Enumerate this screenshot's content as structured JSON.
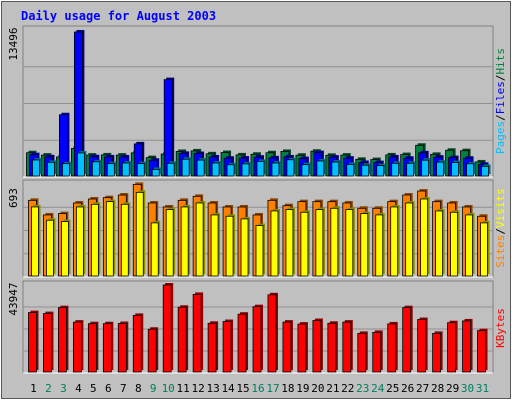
{
  "title": "Daily usage for August 2003",
  "colors": {
    "background": "#c0c0c0",
    "title": "#0000ff",
    "hits": "#008040",
    "files": "#0000ff",
    "pages": "#00c0ff",
    "visits": "#ffff00",
    "sites": "#ff8000",
    "kbytes": "#ff0000",
    "weekend_label": "#00805c"
  },
  "legends": {
    "top": [
      "Pages",
      "/",
      "Files",
      "/",
      "Hits"
    ],
    "middle": [
      "Sites",
      "/",
      "Visits"
    ],
    "bottom": [
      "KBytes"
    ]
  },
  "y_max_labels": {
    "top": "13496",
    "middle": "693",
    "bottom": "43947"
  },
  "chart_data": {
    "type": "bar",
    "title": "Daily usage for August 2003",
    "days": [
      "1",
      "2",
      "3",
      "4",
      "5",
      "6",
      "7",
      "8",
      "9",
      "10",
      "11",
      "12",
      "13",
      "14",
      "15",
      "16",
      "17",
      "18",
      "19",
      "20",
      "21",
      "22",
      "23",
      "24",
      "25",
      "26",
      "27",
      "28",
      "29",
      "30",
      "31"
    ],
    "weekend_days": [
      "2",
      "3",
      "9",
      "10",
      "16",
      "17",
      "23",
      "24",
      "30",
      "31"
    ],
    "panels": [
      {
        "name": "top",
        "ymax": 13496,
        "series": [
          {
            "name": "Hits",
            "values": [
              2150,
              1930,
              1760,
              2540,
              1930,
              1950,
              1930,
              2140,
              1700,
              2030,
              2270,
              2320,
              2050,
              2170,
              1950,
              2010,
              2150,
              2270,
              1920,
              2290,
              1910,
              1930,
              1540,
              1520,
              1950,
              1980,
              2840,
              2000,
              2380,
              2340,
              1300
            ]
          },
          {
            "name": "Files",
            "values": [
              1970,
              1770,
              5660,
              13310,
              1780,
              1760,
              1760,
              2970,
              1460,
              8910,
              2090,
              2080,
              1760,
              1640,
              1660,
              1740,
              1680,
              1760,
              1610,
              2160,
              1750,
              1650,
              1250,
              1240,
              1760,
              1640,
              2140,
              1740,
              1700,
              1640,
              1080
            ]
          },
          {
            "name": "Pages",
            "values": [
              1480,
              1260,
              1140,
              2130,
              1310,
              1140,
              1200,
              1140,
              610,
              1170,
              1550,
              1470,
              1200,
              1040,
              1120,
              1350,
              1200,
              1500,
              1050,
              1390,
              1290,
              1070,
              990,
              960,
              1170,
              1170,
              1460,
              1280,
              1240,
              1130,
              890
            ]
          }
        ]
      },
      {
        "name": "middle",
        "ymax": 693,
        "series": [
          {
            "name": "Sites",
            "values": [
              570,
              460,
              470,
              550,
              580,
              590,
              610,
              690,
              550,
              520,
              570,
              600,
              550,
              520,
              520,
              460,
              570,
              530,
              560,
              560,
              560,
              550,
              510,
              510,
              560,
              610,
              640,
              560,
              550,
              520,
              450
            ]
          },
          {
            "name": "Visits",
            "values": [
              520,
              420,
              410,
              520,
              540,
              560,
              540,
              630,
              400,
              500,
              520,
              550,
              460,
              450,
              430,
              380,
              490,
              500,
              480,
              500,
              510,
              500,
              470,
              460,
              520,
              550,
              580,
              490,
              480,
              460,
              400
            ]
          }
        ]
      },
      {
        "name": "bottom",
        "ymax": 43947,
        "series": [
          {
            "name": "KBytes",
            "values": [
              30000,
              29500,
              32500,
              25200,
              24400,
              24400,
              24500,
              28600,
              21600,
              43947,
              32700,
              39200,
              24600,
              25500,
              29200,
              33000,
              39000,
              25200,
              24200,
              26000,
              24600,
              25200,
              19500,
              20000,
              24300,
              32500,
              26500,
              19500,
              24900,
              25800,
              20900
            ]
          }
        ]
      }
    ]
  }
}
